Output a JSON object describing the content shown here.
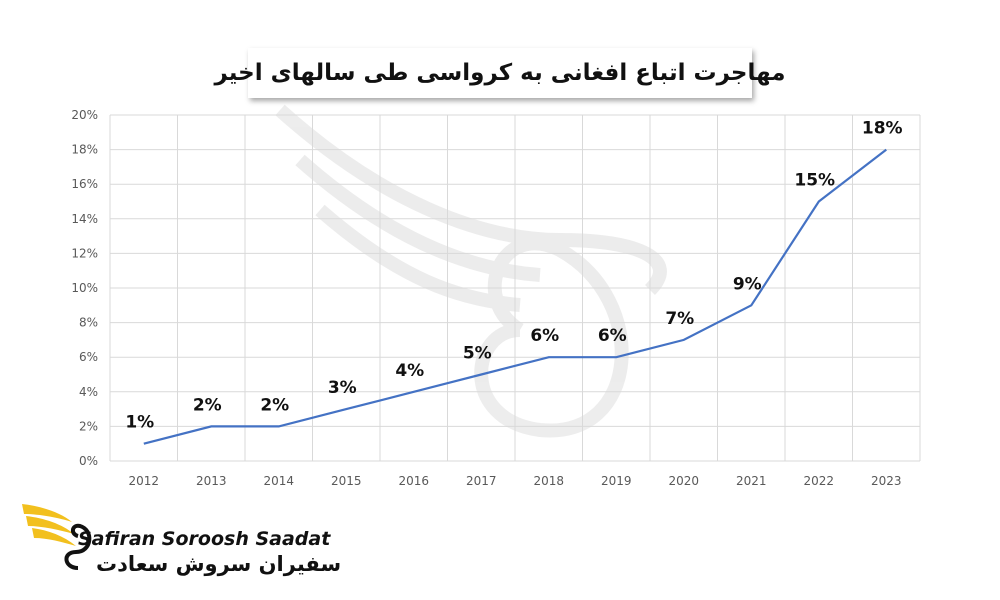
{
  "chart_data": {
    "type": "line",
    "title": "مهاجرت اتباع افغانی به کرواسی طی سالهای اخیر",
    "categories": [
      "2012",
      "2013",
      "2014",
      "2015",
      "2016",
      "2017",
      "2018",
      "2019",
      "2020",
      "2021",
      "2022",
      "2023"
    ],
    "values": [
      1,
      2,
      2,
      3,
      4,
      5,
      6,
      6,
      7,
      9,
      15,
      18
    ],
    "data_labels": [
      "1%",
      "2%",
      "2%",
      "3%",
      "4%",
      "5%",
      "6%",
      "6%",
      "7%",
      "9%",
      "15%",
      "18%"
    ],
    "ylim": [
      0,
      20
    ],
    "y_ticks": [
      "0%",
      "2%",
      "4%",
      "6%",
      "8%",
      "10%",
      "12%",
      "14%",
      "16%",
      "18%",
      "20%"
    ],
    "xlabel": "",
    "ylabel": "",
    "grid": true,
    "line_color": "#4472c4",
    "grid_color": "#d9d9d9"
  },
  "branding": {
    "name_en": "Safiran Soroosh Saadat",
    "name_fa": "سفیران سروش سعادت",
    "logo_icon": "golden-bird-wing-logo",
    "logo_color": "#f2c01e"
  }
}
